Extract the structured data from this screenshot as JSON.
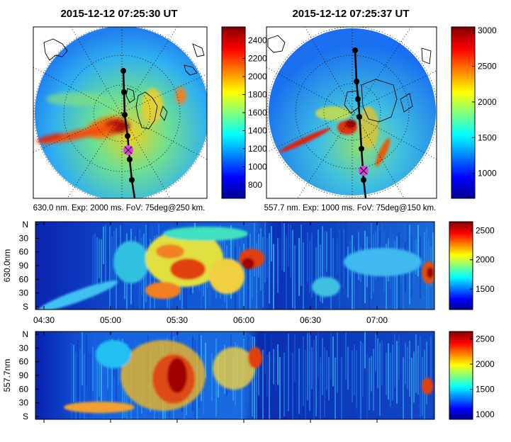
{
  "panels": {
    "left_title": "2015-12-12 07:25:30 UT",
    "right_title": "2015-12-12 07:25:37 UT",
    "left_caption": "630.0 nm. Exp: 2000 ms. FoV: 75deg@250 km.",
    "right_caption": "557.7 nm. Exp: 1000 ms. FoV: 75deg@150 km."
  },
  "keogram_630": {
    "ylabel": "630.0nm"
  },
  "keogram_557": {
    "ylabel": "557.7nm"
  },
  "chart_data": [
    {
      "type": "heatmap",
      "title": "2015-12-12 07:25:30 UT",
      "caption": "630.0 nm. Exp: 2000 ms. FoV: 75deg@250 km.",
      "colorbar": {
        "ticks": [
          800,
          1000,
          1200,
          1400,
          1600,
          1800,
          2000,
          2200,
          2400
        ],
        "range": [
          650,
          2550
        ]
      },
      "track_points": 7
    },
    {
      "type": "heatmap",
      "title": "2015-12-12 07:25:37 UT",
      "caption": "557.7 nm. Exp: 1000 ms. FoV: 75deg@150 km.",
      "colorbar": {
        "ticks": [
          1000,
          1500,
          2000,
          2500,
          3000
        ],
        "range": [
          650,
          3050
        ]
      },
      "track_points": 7
    },
    {
      "type": "heatmap",
      "ylabel": "630.0nm",
      "yticks": [
        "N",
        "30",
        "60",
        "90",
        "60",
        "30",
        "S"
      ],
      "xticks": [
        "04:30",
        "05:00",
        "05:30",
        "06:00",
        "06:30",
        "07:00"
      ],
      "colorbar": {
        "ticks": [
          1500,
          2000,
          2500
        ],
        "range": [
          1150,
          2650
        ]
      }
    },
    {
      "type": "heatmap",
      "ylabel": "557.7nm",
      "yticks": [
        "N",
        "30",
        "60",
        "90",
        "60",
        "30",
        "S"
      ],
      "colorbar": {
        "ticks": [
          1000,
          1500,
          2000,
          2500
        ],
        "range": [
          900,
          2650
        ]
      }
    }
  ],
  "colors": {
    "jet": [
      "#00008f",
      "#0000ff",
      "#00ffff",
      "#ffff00",
      "#ff0000",
      "#800000"
    ],
    "track": "#000000",
    "marker": "#e040e0"
  }
}
